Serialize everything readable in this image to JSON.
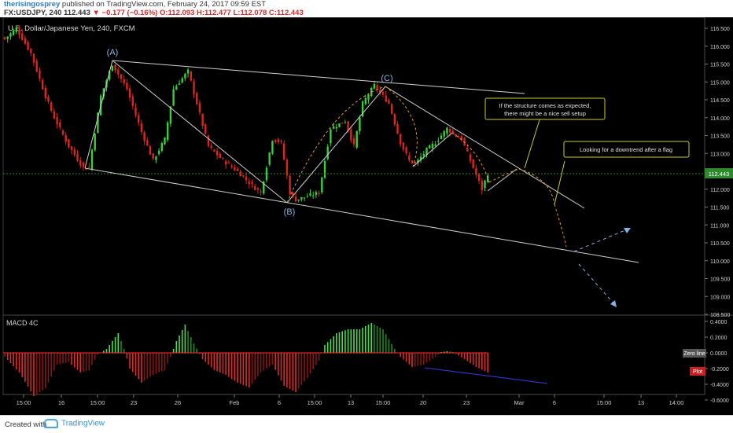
{
  "header": {
    "user": "therisingosprey",
    "published": "published on TradingView.com, February 24, 2017 09:59 EST",
    "symbol": "FX:USDJPY, 240",
    "last": "112.443",
    "change": "▼ −0.177 (−0.16%)",
    "ohlc": "O:112.093 H:112.477 L:112.078 C:112.443"
  },
  "chart_title": "U.S. Dollar/Japanese Yen, 240, FXCM",
  "indicator_title": "MACD 4C",
  "footer": {
    "created": "Created with",
    "brand": "TradingView"
  },
  "colors": {
    "up": "#34d23a",
    "down": "#e0231c",
    "background": "#000000",
    "annotation": "#d0d0d0",
    "wave_label": "#8eb4e0",
    "fib_dashed": "#e8a020",
    "projection": "#8ab0e8",
    "divergence": "#3b3be0",
    "note_border": "#c8d028",
    "last_price_line": "#2f8a2f"
  },
  "chart_data": [
    {
      "type": "candlestick",
      "title": "U.S. Dollar/Japanese Yen, 240, FXCM",
      "y_axis_ticks": [
        "116.500",
        "116.000",
        "115.500",
        "115.000",
        "114.500",
        "114.000",
        "113.500",
        "113.000",
        "112.500",
        "112.000",
        "111.500",
        "111.000",
        "110.500",
        "110.000",
        "109.500",
        "109.000",
        "108.500"
      ],
      "ylim": [
        108.45,
        116.82
      ],
      "x_axis_ticks": [
        "15:00",
        "16",
        "15:00",
        "23",
        "26",
        "Feb",
        "6",
        "15:00",
        "13",
        "15:00",
        "20",
        "23",
        "Mar",
        "6",
        "15:00",
        "13",
        "14:00"
      ],
      "last_price": "112.443",
      "ohlc": {
        "open": 112.093,
        "high": 112.477,
        "low": 112.078,
        "close": 112.443
      },
      "close_path_anchors": [
        [
          0,
          116.2
        ],
        [
          4,
          116.5
        ],
        [
          9,
          115.8
        ],
        [
          14,
          114.6
        ],
        [
          17,
          114.0
        ],
        [
          22,
          113.2
        ],
        [
          27,
          112.6
        ],
        [
          29,
          112.6
        ],
        [
          33,
          114.6
        ],
        [
          37,
          115.5
        ],
        [
          42,
          114.8
        ],
        [
          47,
          113.6
        ],
        [
          51,
          112.8
        ],
        [
          55,
          113.4
        ],
        [
          58,
          114.8
        ],
        [
          63,
          115.3
        ],
        [
          66,
          114.4
        ],
        [
          70,
          113.2
        ],
        [
          75,
          112.8
        ],
        [
          80,
          112.5
        ],
        [
          85,
          112.1
        ],
        [
          88,
          111.9
        ],
        [
          92,
          113.4
        ],
        [
          95,
          113.3
        ],
        [
          98,
          111.9
        ],
        [
          100,
          111.7
        ],
        [
          104,
          111.8
        ],
        [
          108,
          111.9
        ],
        [
          112,
          113.7
        ],
        [
          117,
          113.9
        ],
        [
          120,
          113.2
        ],
        [
          123,
          114.4
        ],
        [
          127,
          114.9
        ],
        [
          132,
          114.4
        ],
        [
          136,
          113.3
        ],
        [
          139,
          112.8
        ],
        [
          141,
          112.7
        ],
        [
          145,
          113.1
        ],
        [
          148,
          113.3
        ],
        [
          152,
          113.7
        ],
        [
          155,
          113.5
        ],
        [
          157,
          113.4
        ],
        [
          160,
          112.8
        ],
        [
          164,
          112.0
        ],
        [
          166,
          112.44
        ]
      ],
      "annotations": [
        "(A)",
        "(B)",
        "(C)",
        "If the structure comes as expected, there might be a nice sell setup",
        "Looking for a downtrend after a flag"
      ]
    },
    {
      "type": "bar",
      "title": "MACD 4C",
      "y_axis_ticks": [
        "0.4000",
        "0.2000",
        "0.0000",
        "-0.2000",
        "-0.4000",
        "-0.6000"
      ],
      "ylim": [
        -0.7,
        0.47
      ],
      "labels": [
        "Zero line",
        "Plot"
      ],
      "histogram_anchors": [
        [
          0,
          -0.05
        ],
        [
          5,
          -0.25
        ],
        [
          10,
          -0.55
        ],
        [
          14,
          -0.45
        ],
        [
          18,
          -0.15
        ],
        [
          22,
          -0.12
        ],
        [
          26,
          -0.25
        ],
        [
          29,
          -0.22
        ],
        [
          32,
          -0.02
        ],
        [
          35,
          0.05
        ],
        [
          37,
          0.15
        ],
        [
          39,
          0.25
        ],
        [
          41,
          0.05
        ],
        [
          43,
          -0.2
        ],
        [
          47,
          -0.38
        ],
        [
          51,
          -0.28
        ],
        [
          55,
          -0.22
        ],
        [
          57,
          -0.05
        ],
        [
          59,
          0.15
        ],
        [
          62,
          0.36
        ],
        [
          65,
          0.12
        ],
        [
          68,
          -0.08
        ],
        [
          72,
          -0.22
        ],
        [
          76,
          -0.28
        ],
        [
          80,
          -0.38
        ],
        [
          84,
          -0.44
        ],
        [
          88,
          -0.25
        ],
        [
          92,
          -0.15
        ],
        [
          96,
          -0.42
        ],
        [
          100,
          -0.5
        ],
        [
          104,
          -0.32
        ],
        [
          108,
          -0.1
        ],
        [
          110,
          0.1
        ],
        [
          114,
          0.25
        ],
        [
          118,
          0.3
        ],
        [
          122,
          0.3
        ],
        [
          126,
          0.38
        ],
        [
          130,
          0.3
        ],
        [
          134,
          0.05
        ],
        [
          136,
          -0.05
        ],
        [
          140,
          -0.18
        ],
        [
          144,
          -0.15
        ],
        [
          148,
          -0.05
        ],
        [
          150,
          0.01
        ],
        [
          152,
          0.02
        ],
        [
          154,
          0.01
        ],
        [
          158,
          -0.08
        ],
        [
          162,
          -0.18
        ],
        [
          166,
          -0.25
        ]
      ]
    }
  ]
}
